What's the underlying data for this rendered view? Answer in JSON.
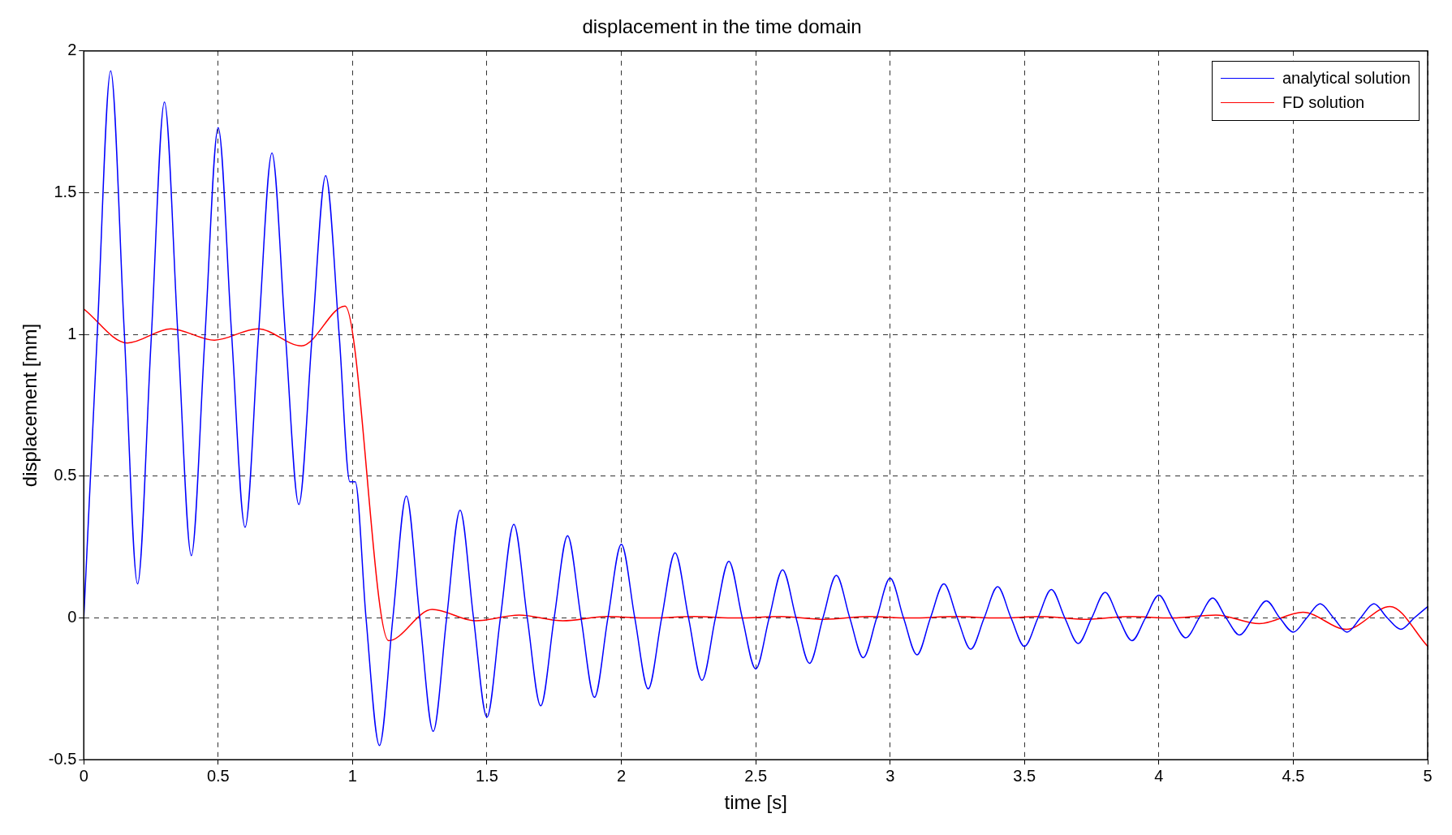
{
  "chart_data": {
    "type": "line",
    "title": "displacement in the time domain",
    "xlabel": "time [s]",
    "ylabel": "displacement [mm]",
    "xlim": [
      0,
      5
    ],
    "xticks": [
      0,
      0.5,
      1,
      1.5,
      2,
      2.5,
      3,
      3.5,
      4,
      4.5,
      5
    ],
    "ylim": [
      -0.5,
      2
    ],
    "yticks": [
      -0.5,
      0,
      0.5,
      1,
      1.5,
      2
    ],
    "grid": true,
    "legend": "top right",
    "marker": "none",
    "line_style": "solid",
    "series": [
      {
        "name": "analytical solution",
        "color": "#0000ff",
        "x": [
          0,
          0.05,
          0.1,
          0.15,
          0.2,
          0.25,
          0.3,
          0.35,
          0.4,
          0.45,
          0.5,
          0.55,
          0.6,
          0.65,
          0.7,
          0.75,
          0.8,
          0.85,
          0.9,
          0.95,
          0.99,
          1.01,
          1.05,
          1.1,
          1.15,
          1.2,
          1.25,
          1.3,
          1.35,
          1.4,
          1.45,
          1.5,
          1.55,
          1.6,
          1.65,
          1.7,
          1.75,
          1.8,
          1.85,
          1.9,
          1.95,
          2,
          2.05,
          2.1,
          2.15,
          2.2,
          2.25,
          2.3,
          2.35,
          2.4,
          2.45,
          2.5,
          2.55,
          2.6,
          2.65,
          2.7,
          2.75,
          2.8,
          2.85,
          2.9,
          2.95,
          3,
          3.05,
          3.1,
          3.15,
          3.2,
          3.25,
          3.3,
          3.35,
          3.4,
          3.45,
          3.5,
          3.55,
          3.6,
          3.65,
          3.7,
          3.75,
          3.8,
          3.85,
          3.9,
          3.95,
          4,
          4.05,
          4.1,
          4.15,
          4.2,
          4.25,
          4.3,
          4.35,
          4.4,
          4.45,
          4.5,
          4.55,
          4.6,
          4.65,
          4.7,
          4.75,
          4.8,
          4.85,
          4.9,
          4.95,
          5
        ],
        "values": [
          0,
          1.0,
          1.93,
          1.02,
          0.12,
          0.97,
          1.82,
          1.0,
          0.22,
          0.98,
          1.73,
          1.0,
          0.32,
          1.0,
          1.64,
          1.0,
          0.4,
          1.0,
          1.56,
          1.0,
          0.48,
          0.48,
          0,
          -0.45,
          0,
          0.43,
          0,
          -0.4,
          0,
          0.38,
          0,
          -0.35,
          0,
          0.33,
          0,
          -0.31,
          0,
          0.29,
          0,
          -0.28,
          0,
          0.26,
          0,
          -0.25,
          0,
          0.23,
          0,
          -0.22,
          0,
          0.2,
          0,
          -0.18,
          0,
          0.17,
          0,
          -0.16,
          0,
          0.15,
          0,
          -0.14,
          0,
          0.14,
          0,
          -0.13,
          0,
          0.12,
          0,
          -0.11,
          0,
          0.11,
          0,
          -0.1,
          0,
          0.1,
          0,
          -0.09,
          0,
          0.09,
          0,
          -0.08,
          0,
          0.08,
          0,
          -0.07,
          0,
          0.07,
          0,
          -0.06,
          0,
          0.06,
          0,
          -0.05,
          0,
          0.05,
          0,
          -0.05,
          0,
          0.05,
          0,
          -0.04,
          0,
          0.04
        ]
      },
      {
        "name": "FD solution",
        "color": "#ff0000",
        "x": [
          0,
          0.162,
          0.324,
          0.486,
          0.648,
          0.81,
          0.972,
          1.134,
          1.296,
          1.458,
          1.62,
          1.782,
          1.944,
          2.106,
          2.268,
          2.43,
          2.592,
          2.754,
          2.916,
          3.078,
          3.24,
          3.402,
          3.564,
          3.726,
          3.888,
          4.05,
          4.212,
          4.374,
          4.536,
          4.698,
          4.86,
          5
        ],
        "values": [
          1.09,
          0.97,
          1.02,
          0.98,
          1.02,
          0.96,
          1.1,
          -0.08,
          0.03,
          -0.01,
          0.01,
          -0.01,
          0.005,
          0,
          0.005,
          0,
          0.005,
          -0.005,
          0.005,
          0,
          0.005,
          0,
          0.005,
          -0.005,
          0.005,
          0,
          0.01,
          -0.02,
          0.02,
          -0.04,
          0.04,
          -0.1
        ]
      }
    ]
  }
}
